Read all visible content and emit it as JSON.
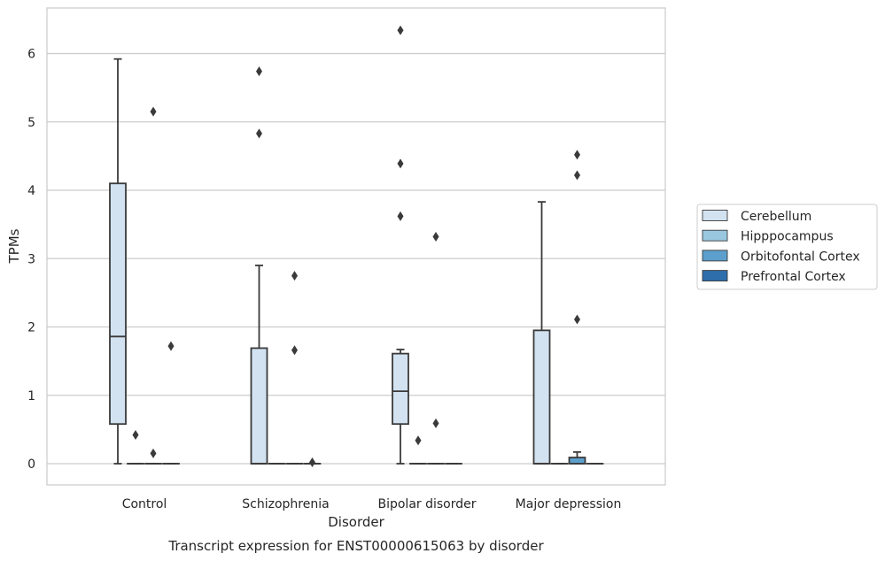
{
  "chart_data": {
    "type": "box",
    "title": "Transcript expression for ENST00000615063 by disorder",
    "xlabel": "Disorder",
    "ylabel": "TPMs",
    "categories": [
      "Control",
      "Schizophrenia",
      "Bipolar disorder",
      "Major depression"
    ],
    "ylim": [
      -0.3,
      6.65
    ],
    "yticks": [
      0,
      1,
      2,
      3,
      4,
      5,
      6
    ],
    "grid": true,
    "legend_position": "right",
    "series": [
      {
        "name": "Cerebellum",
        "color": "#d2e2f1",
        "boxes": [
          {
            "q1": 0.58,
            "median": 1.86,
            "q3": 4.1,
            "whisker_low": 0.0,
            "whisker_high": 5.92,
            "outliers": []
          },
          {
            "q1": 0.0,
            "median": 0.0,
            "q3": 1.69,
            "whisker_low": 0.0,
            "whisker_high": 2.9,
            "outliers": [
              4.83,
              5.74
            ]
          },
          {
            "q1": 0.58,
            "median": 1.06,
            "q3": 1.61,
            "whisker_low": 0.0,
            "whisker_high": 1.67,
            "outliers": [
              3.62,
              4.39,
              6.34
            ]
          },
          {
            "q1": 0.0,
            "median": 0.0,
            "q3": 1.95,
            "whisker_low": 0.0,
            "whisker_high": 3.83,
            "outliers": []
          }
        ]
      },
      {
        "name": "Hipppocampus",
        "color": "#9ac7e0",
        "boxes": [
          {
            "q1": 0.0,
            "median": 0.0,
            "q3": 0.0,
            "whisker_low": 0.0,
            "whisker_high": 0.0,
            "outliers": [
              0.42
            ]
          },
          {
            "q1": 0.0,
            "median": 0.0,
            "q3": 0.0,
            "whisker_low": 0.0,
            "whisker_high": 0.0,
            "outliers": []
          },
          {
            "q1": 0.0,
            "median": 0.0,
            "q3": 0.0,
            "whisker_low": 0.0,
            "whisker_high": 0.0,
            "outliers": [
              0.34
            ]
          },
          {
            "q1": 0.0,
            "median": 0.0,
            "q3": 0.0,
            "whisker_low": 0.0,
            "whisker_high": 0.0,
            "outliers": []
          }
        ]
      },
      {
        "name": "Orbitofontal Cortex",
        "color": "#5c9fcd",
        "boxes": [
          {
            "q1": 0.0,
            "median": 0.0,
            "q3": 0.0,
            "whisker_low": 0.0,
            "whisker_high": 0.0,
            "outliers": [
              0.15,
              5.15
            ]
          },
          {
            "q1": 0.0,
            "median": 0.0,
            "q3": 0.0,
            "whisker_low": 0.0,
            "whisker_high": 0.0,
            "outliers": [
              1.66,
              2.75
            ]
          },
          {
            "q1": 0.0,
            "median": 0.0,
            "q3": 0.0,
            "whisker_low": 0.0,
            "whisker_high": 0.0,
            "outliers": [
              0.59,
              3.32
            ]
          },
          {
            "q1": 0.0,
            "median": 0.0,
            "q3": 0.09,
            "whisker_low": 0.0,
            "whisker_high": 0.17,
            "outliers": [
              2.11,
              4.22,
              4.52
            ]
          }
        ]
      },
      {
        "name": "Prefrontal Cortex",
        "color": "#2e6eab",
        "boxes": [
          {
            "q1": 0.0,
            "median": 0.0,
            "q3": 0.0,
            "whisker_low": 0.0,
            "whisker_high": 0.0,
            "outliers": [
              1.72
            ]
          },
          {
            "q1": 0.0,
            "median": 0.0,
            "q3": 0.0,
            "whisker_low": 0.0,
            "whisker_high": 0.0,
            "outliers": [
              0.02
            ]
          },
          {
            "q1": 0.0,
            "median": 0.0,
            "q3": 0.0,
            "whisker_low": 0.0,
            "whisker_high": 0.0,
            "outliers": []
          },
          {
            "q1": 0.0,
            "median": 0.0,
            "q3": 0.0,
            "whisker_low": 0.0,
            "whisker_high": 0.0,
            "outliers": []
          }
        ]
      }
    ]
  }
}
